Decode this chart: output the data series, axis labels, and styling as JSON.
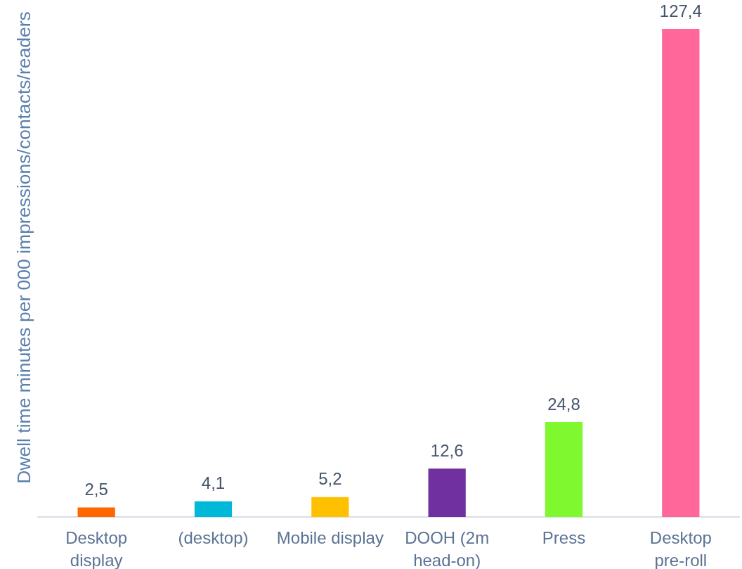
{
  "chart_data": {
    "type": "bar",
    "ylabel": "Dwell time minutes per 000 impressions/contacts/readers",
    "categories": [
      "Desktop display",
      "(desktop)",
      "Mobile display",
      "DOOH (2m head-on)",
      "Press",
      "Desktop pre-roll"
    ],
    "values": [
      2.5,
      4.1,
      5.2,
      12.6,
      24.8,
      127.4
    ],
    "colors": [
      "#ff6600",
      "#00b8d8",
      "#ffc000",
      "#7030a0",
      "#80f830",
      "#ff6699"
    ],
    "value_labels": [
      "2,5",
      "4,1",
      "5,2",
      "12,6",
      "24,8",
      "127,4"
    ],
    "grid": false,
    "legend": false
  }
}
